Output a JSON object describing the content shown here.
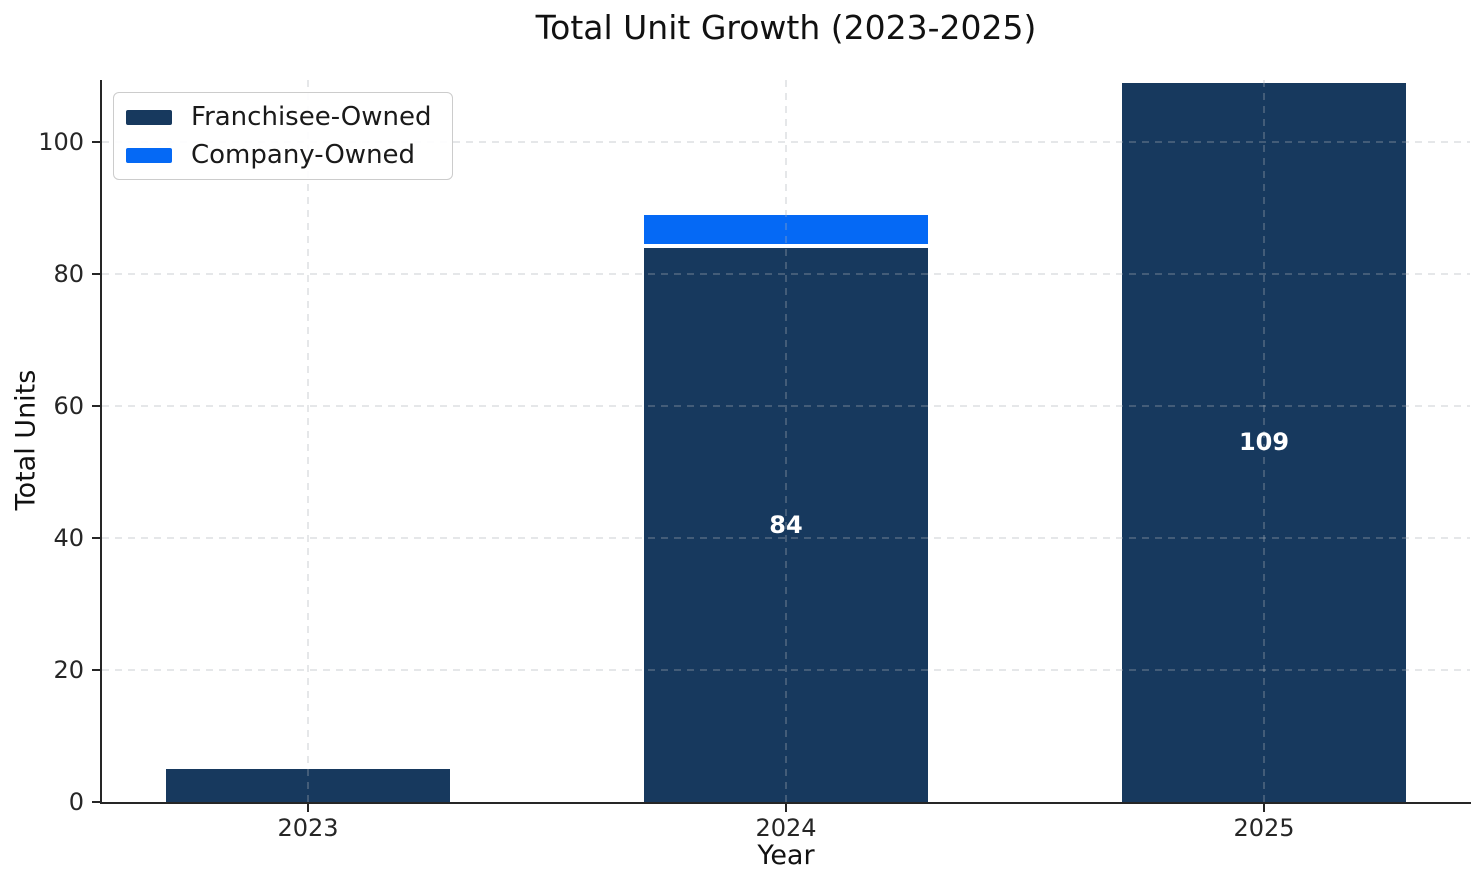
{
  "chart_data": {
    "type": "bar",
    "stacked": true,
    "title": "Total Unit Growth (2023-2025)",
    "xlabel": "Year",
    "ylabel": "Total Units",
    "categories": [
      "2023",
      "2024",
      "2025"
    ],
    "series": [
      {
        "name": "Franchisee-Owned",
        "color": "#17395e",
        "values": [
          5,
          84,
          109
        ]
      },
      {
        "name": "Company-Owned",
        "color": "#0569f5",
        "values": [
          0,
          5,
          0
        ]
      }
    ],
    "bar_labels": [
      null,
      "84",
      "109"
    ],
    "yticks": [
      0,
      20,
      40,
      60,
      80,
      100
    ],
    "ylim": [
      0,
      109.4
    ],
    "grid": "dashed light-gray gridlines on both axes, drawn over bars",
    "legend_position": "upper left",
    "segment_separator_color": "#ffffff",
    "axis_color": "#262626",
    "background_color": "#ffffff"
  }
}
